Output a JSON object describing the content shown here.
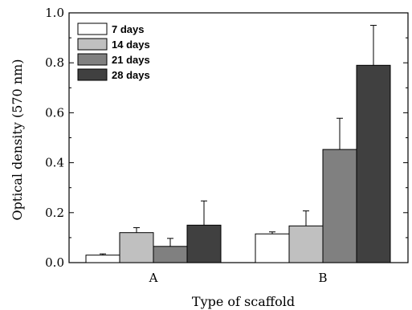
{
  "chart_data": {
    "type": "bar",
    "xlabel": "Type of scaffold",
    "ylabel": "Optical density (570 nm)",
    "categories": [
      "A",
      "B"
    ],
    "ylim": [
      0.0,
      1.0
    ],
    "yticks": [
      0.0,
      0.2,
      0.4,
      0.6,
      0.8,
      1.0
    ],
    "ytick_labels": [
      "0.0",
      "0.2",
      "0.4",
      "0.6",
      "0.8",
      "1.0"
    ],
    "grid": false,
    "legend_position": "top-left",
    "series": [
      {
        "name": "7 days",
        "color": "#ffffff",
        "values": [
          0.03,
          0.115
        ],
        "errors": [
          0.005,
          0.008
        ]
      },
      {
        "name": "14 days",
        "color": "#c0c0c0",
        "values": [
          0.12,
          0.147
        ],
        "errors": [
          0.02,
          0.06
        ]
      },
      {
        "name": "21 days",
        "color": "#808080",
        "values": [
          0.065,
          0.453
        ],
        "errors": [
          0.032,
          0.125
        ]
      },
      {
        "name": "28 days",
        "color": "#404040",
        "values": [
          0.15,
          0.79
        ],
        "errors": [
          0.097,
          0.16
        ]
      }
    ]
  }
}
